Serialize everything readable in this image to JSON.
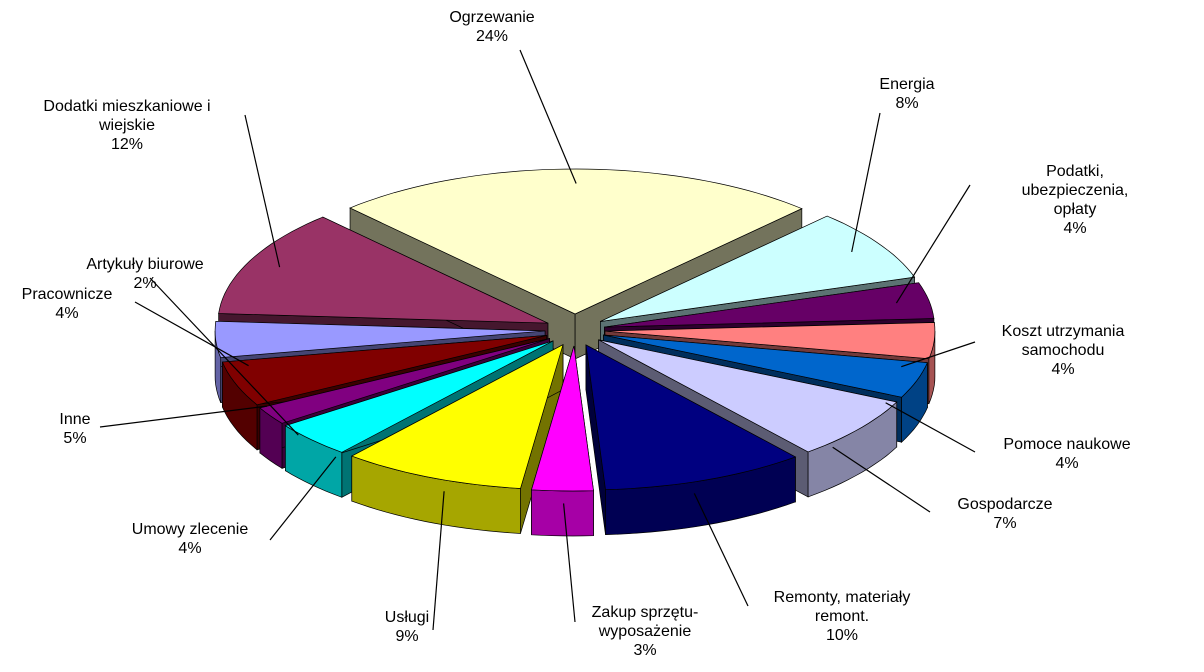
{
  "chart_data": {
    "type": "pie3d",
    "categories": [
      "Ogrzewanie",
      "Energia",
      "Podatki, ubezpieczenia,\nopłaty",
      "Koszt utrzymania\nsamochodu",
      "Pomoce naukowe",
      "Gospodarcze",
      "Remonty, materiały\nremont.",
      "Zakup sprzętu-\nwyposażenie",
      "Usługi",
      "Umowy zlecenie",
      "Artykuły biurowe",
      "Inne",
      "Pracownicze",
      "Dodatki mieszkaniowe i\nwiejskie"
    ],
    "values": [
      24,
      8,
      4,
      4,
      4,
      7,
      10,
      3,
      9,
      4,
      2,
      5,
      4,
      12
    ],
    "value_labels": [
      "24%",
      "8%",
      "4%",
      "4%",
      "4%",
      "7%",
      "10%",
      "3%",
      "9%",
      "4%",
      "2%",
      "5%",
      "4%",
      "12%"
    ],
    "colors": [
      "#ffffcc",
      "#ccffff",
      "#660066",
      "#ff8080",
      "#0066cc",
      "#ccccff",
      "#000080",
      "#ff00ff",
      "#ffff00",
      "#00ffff",
      "#800080",
      "#800000",
      "#9999ff",
      "#993366"
    ]
  }
}
